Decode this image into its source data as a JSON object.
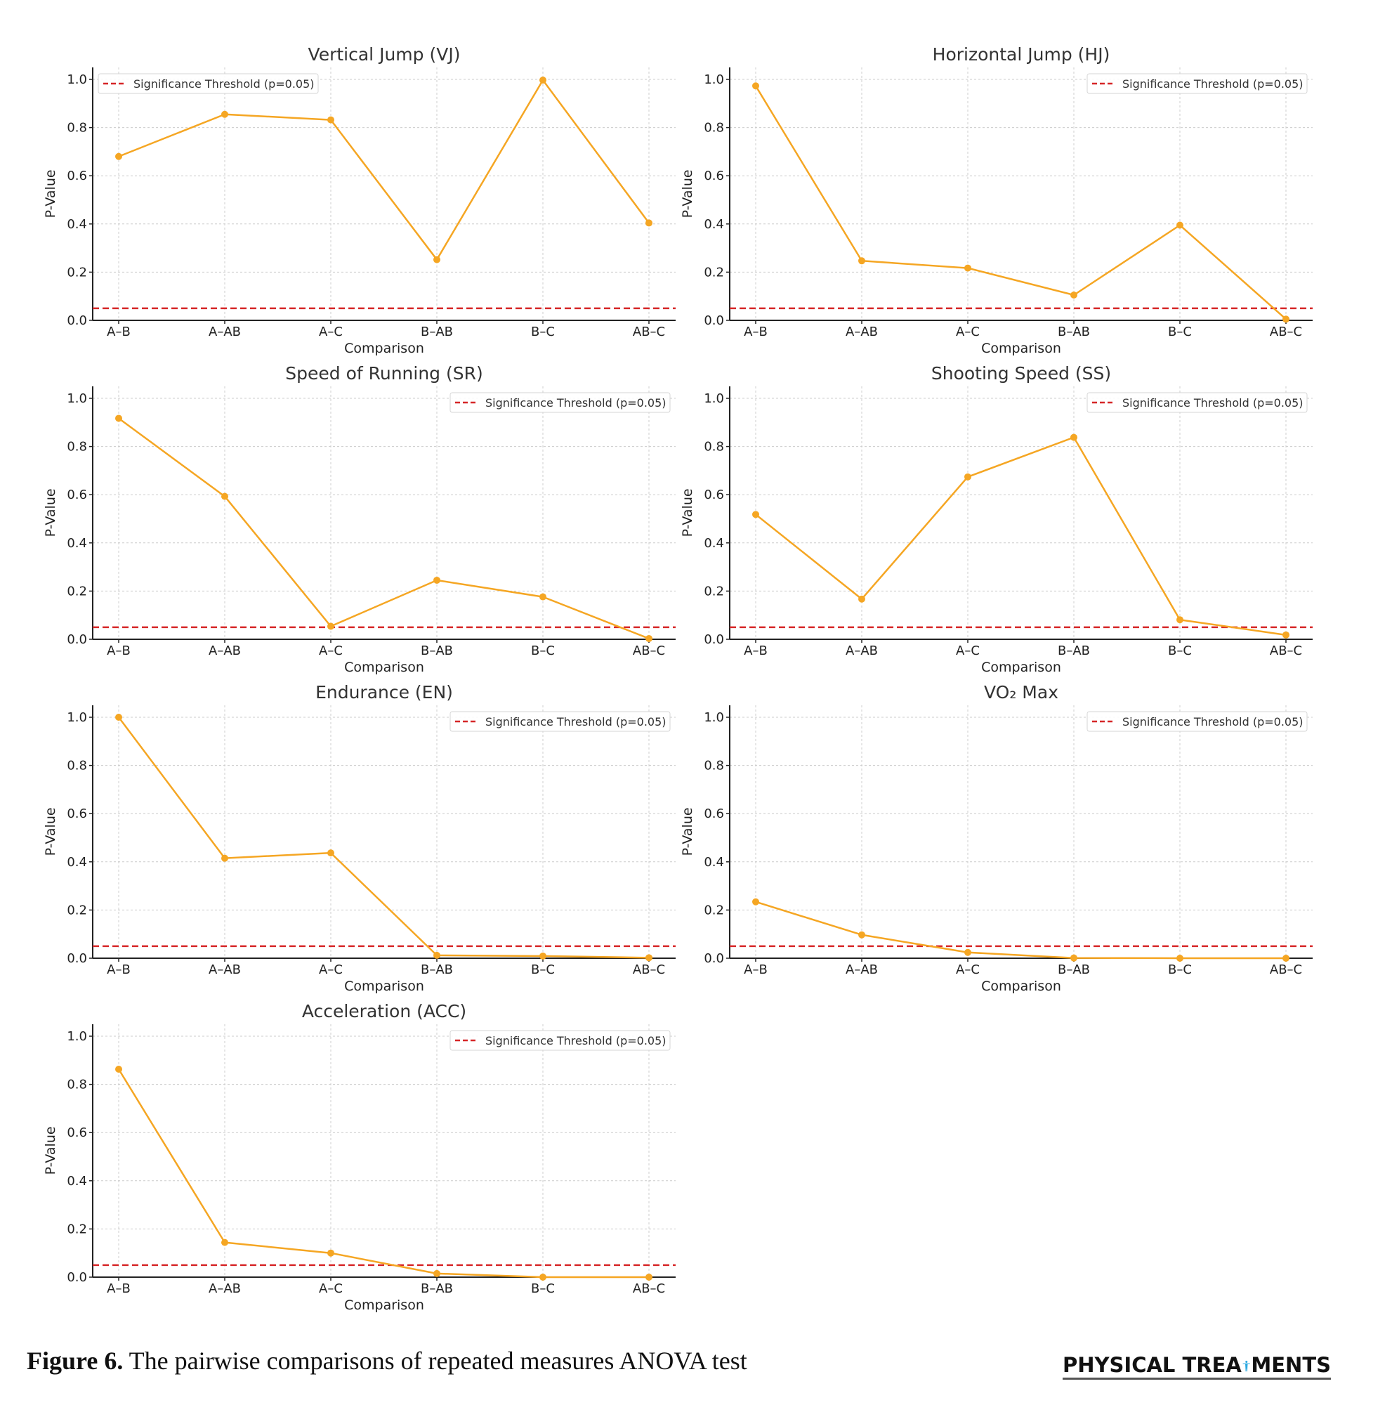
{
  "colors": {
    "series": "#f5a623",
    "threshold": "#d62728",
    "grid": "#cccccc",
    "axis": "#222222",
    "logo_accent": "#29a8e0"
  },
  "common": {
    "xlabel": "Comparison",
    "ylabel": "P-Value",
    "legend_label": "Significance Threshold (p=0.05)",
    "yticks": [
      "0.0",
      "0.2",
      "0.4",
      "0.6",
      "0.8",
      "1.0"
    ]
  },
  "chart_data": [
    {
      "type": "line",
      "title": "Vertical Jump (VJ)",
      "xlabel": "Comparison",
      "ylabel": "P-Value",
      "categories": [
        "A–B",
        "A–AB",
        "A–C",
        "B–AB",
        "B–C",
        "AB–C"
      ],
      "values": [
        0.68,
        0.855,
        0.832,
        0.252,
        0.997,
        0.404
      ],
      "threshold": 0.05,
      "ylim": [
        0,
        1.05
      ],
      "grid": true,
      "legend": "top-left"
    },
    {
      "type": "line",
      "title": "Horizontal Jump (HJ)",
      "xlabel": "Comparison",
      "ylabel": "P-Value",
      "categories": [
        "A–B",
        "A–AB",
        "A–C",
        "B–AB",
        "B–C",
        "AB–C"
      ],
      "values": [
        0.973,
        0.247,
        0.217,
        0.105,
        0.395,
        0.005
      ],
      "threshold": 0.05,
      "ylim": [
        0,
        1.05
      ],
      "grid": true,
      "legend": "top-right"
    },
    {
      "type": "line",
      "title": "Speed of Running (SR)",
      "xlabel": "Comparison",
      "ylabel": "P-Value",
      "categories": [
        "A–B",
        "A–AB",
        "A–C",
        "B–AB",
        "B–C",
        "AB–C"
      ],
      "values": [
        0.917,
        0.593,
        0.054,
        0.245,
        0.176,
        0.003
      ],
      "threshold": 0.05,
      "ylim": [
        0,
        1.05
      ],
      "grid": true,
      "legend": "top-right"
    },
    {
      "type": "line",
      "title": "Shooting Speed (SS)",
      "xlabel": "Comparison",
      "ylabel": "P-Value",
      "categories": [
        "A–B",
        "A–AB",
        "A–C",
        "B–AB",
        "B–C",
        "AB–C"
      ],
      "values": [
        0.518,
        0.167,
        0.674,
        0.838,
        0.081,
        0.018
      ],
      "threshold": 0.05,
      "ylim": [
        0,
        1.05
      ],
      "grid": true,
      "legend": "top-right"
    },
    {
      "type": "line",
      "title": "Endurance (EN)",
      "xlabel": "Comparison",
      "ylabel": "P-Value",
      "categories": [
        "A–B",
        "A–AB",
        "A–C",
        "B–AB",
        "B–C",
        "AB–C"
      ],
      "values": [
        1.0,
        0.415,
        0.437,
        0.012,
        0.009,
        0.002
      ],
      "threshold": 0.05,
      "ylim": [
        0,
        1.05
      ],
      "grid": true,
      "legend": "top-right"
    },
    {
      "type": "line",
      "title": "VO₂ Max",
      "xlabel": "Comparison",
      "ylabel": "P-Value",
      "categories": [
        "A–B",
        "A–AB",
        "A–C",
        "B–AB",
        "B–C",
        "AB–C"
      ],
      "values": [
        0.234,
        0.097,
        0.024,
        0.001,
        0.0,
        0.0
      ],
      "threshold": 0.05,
      "ylim": [
        0,
        1.05
      ],
      "grid": true,
      "legend": "top-right"
    },
    {
      "type": "line",
      "title": "Acceleration (ACC)",
      "xlabel": "Comparison",
      "ylabel": "P-Value",
      "categories": [
        "A–B",
        "A–AB",
        "A–C",
        "B–AB",
        "B–C",
        "AB–C"
      ],
      "values": [
        0.863,
        0.144,
        0.1,
        0.015,
        0.0,
        0.0
      ],
      "threshold": 0.05,
      "ylim": [
        0,
        1.05
      ],
      "grid": true,
      "legend": "top-right"
    }
  ],
  "caption": {
    "label": "Figure 6.",
    "text": " The pairwise comparisons of repeated measures ANOVA test"
  },
  "logo": {
    "text_left": "PHYSICAL TREA",
    "text_right": "MENTS",
    "full_text": "PHYSICAL TREATMENTS"
  }
}
